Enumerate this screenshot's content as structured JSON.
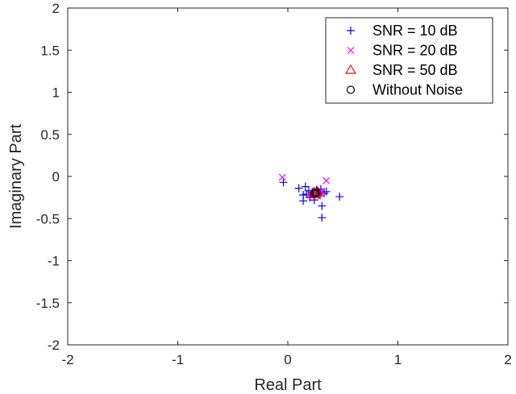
{
  "chart_data": {
    "type": "scatter",
    "xlabel": "Real Part",
    "ylabel": "Imaginary Part",
    "xlim": [
      -2,
      2
    ],
    "ylim": [
      -2,
      2
    ],
    "xticks": [
      -2,
      -1,
      0,
      1,
      2
    ],
    "yticks": [
      -2,
      -1.5,
      -1,
      -0.5,
      0,
      0.5,
      1,
      1.5,
      2
    ],
    "grid": false,
    "legend_position": "top-right",
    "series": [
      {
        "name": "SNR = 10 dB",
        "marker": "plus",
        "color": "#0000ff",
        "points": [
          [
            -0.04,
            -0.07
          ],
          [
            0.1,
            -0.14
          ],
          [
            0.14,
            -0.22
          ],
          [
            0.14,
            -0.29
          ],
          [
            0.16,
            -0.12
          ],
          [
            0.17,
            -0.21
          ],
          [
            0.19,
            -0.17
          ],
          [
            0.2,
            -0.25
          ],
          [
            0.22,
            -0.19
          ],
          [
            0.24,
            -0.28
          ],
          [
            0.26,
            -0.16
          ],
          [
            0.28,
            -0.22
          ],
          [
            0.3,
            -0.15
          ],
          [
            0.31,
            -0.35
          ],
          [
            0.31,
            -0.49
          ],
          [
            0.33,
            -0.2
          ],
          [
            0.35,
            -0.18
          ],
          [
            0.47,
            -0.24
          ]
        ]
      },
      {
        "name": "SNR = 20 dB",
        "marker": "x",
        "color": "#ff00ff",
        "points": [
          [
            -0.05,
            -0.01
          ],
          [
            0.2,
            -0.21
          ],
          [
            0.22,
            -0.24
          ],
          [
            0.25,
            -0.17
          ],
          [
            0.27,
            -0.23
          ],
          [
            0.29,
            -0.2
          ],
          [
            0.31,
            -0.18
          ],
          [
            0.35,
            -0.05
          ]
        ]
      },
      {
        "name": "SNR = 50 dB",
        "marker": "triangle",
        "color": "#ff0000",
        "points": [
          [
            0.24,
            -0.19
          ],
          [
            0.26,
            -0.2
          ],
          [
            0.27,
            -0.18
          ],
          [
            0.25,
            -0.21
          ]
        ]
      },
      {
        "name": "Without Noise",
        "marker": "circle",
        "color": "#000000",
        "points": [
          [
            0.25,
            -0.2
          ],
          [
            0.26,
            -0.19
          ],
          [
            0.24,
            -0.2
          ]
        ]
      }
    ]
  }
}
